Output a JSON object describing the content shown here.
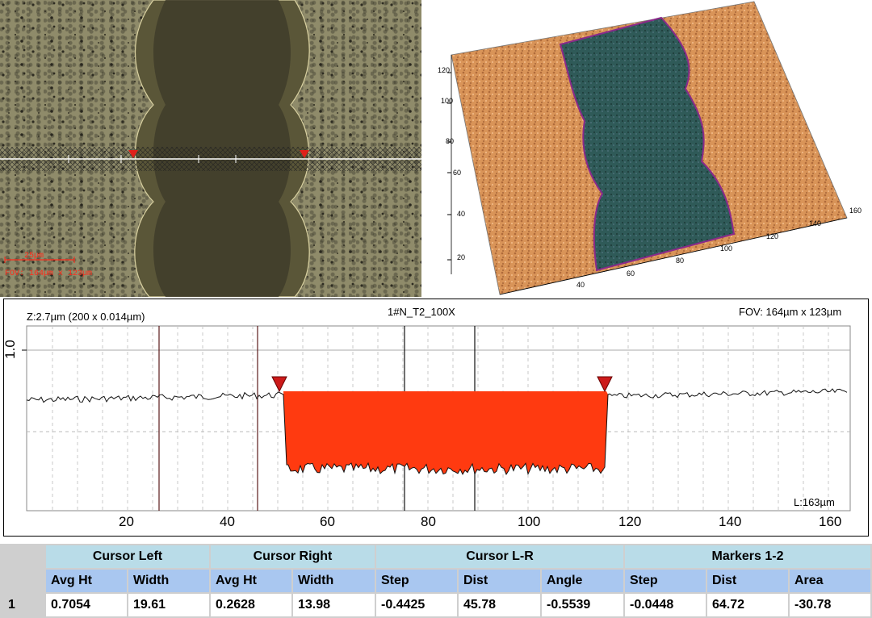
{
  "optical": {
    "scale_bar": "25µm",
    "fov": "FOV: 164µm x 123µm"
  },
  "view3d": {
    "y_ticks": [
      "20",
      "40",
      "60",
      "80",
      "100",
      "120"
    ],
    "x_ticks": [
      "40",
      "60",
      "80",
      "100",
      "120",
      "140",
      "160"
    ],
    "colors": {
      "surface": "#d9955a",
      "trench": "#2f5a58",
      "edge": "#8a2a8a"
    }
  },
  "profile": {
    "z_label": "Z:2.7µm (200 x 0.014µm)",
    "title": "1#N_T2_100X",
    "fov": "FOV: 164µm x 123µm",
    "length": "L:163µm",
    "y_tick": "1.0",
    "x_ticks": [
      "20",
      "40",
      "60",
      "80",
      "100",
      "120",
      "140",
      "160"
    ],
    "fill_color": "#ff3a10",
    "marker_color": "#cc1a1a"
  },
  "table": {
    "groups": [
      "Cursor Left",
      "Cursor Right",
      "Cursor L-R",
      "Markers 1-2"
    ],
    "headers": [
      "Avg Ht",
      "Width",
      "Avg Ht",
      "Width",
      "Step",
      "Dist",
      "Angle",
      "Step",
      "Dist",
      "Area"
    ],
    "row_number": "1",
    "values": [
      "0.7054",
      "19.61",
      "0.2628",
      "13.98",
      "-0.4425",
      "45.78",
      "-0.5539",
      "-0.0448",
      "64.72",
      "-30.78"
    ]
  }
}
